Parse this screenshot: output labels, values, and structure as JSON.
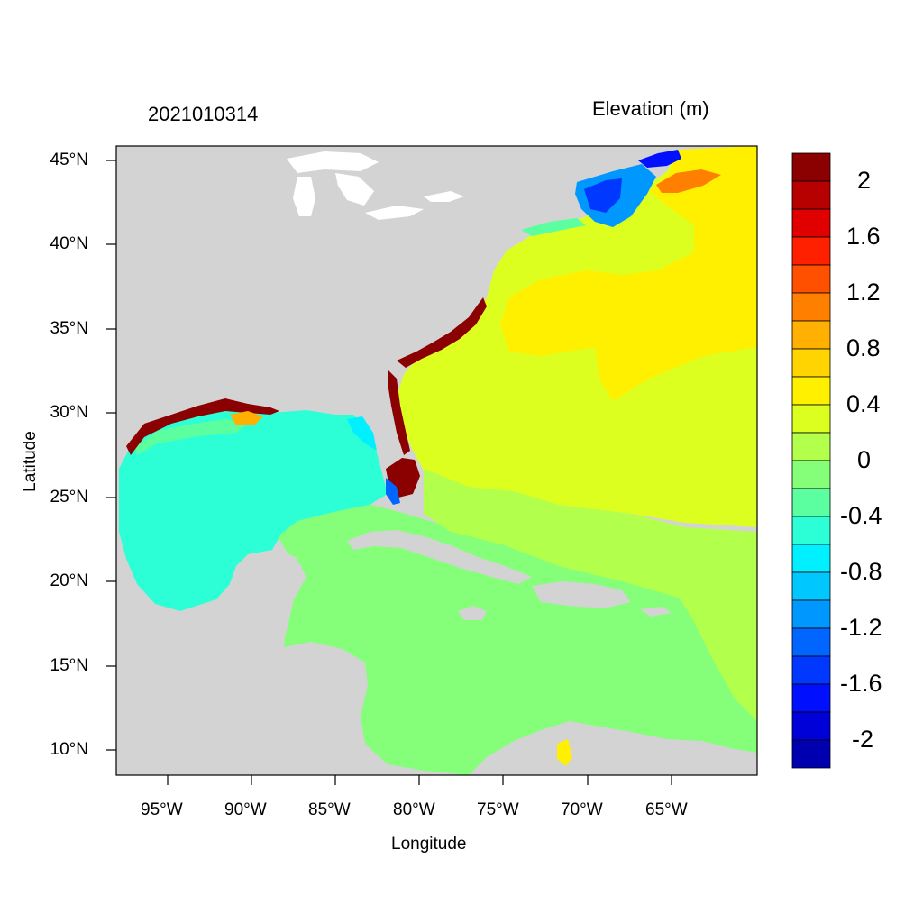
{
  "header": {
    "timestamp": "2021010314",
    "variable": "Elevation (m)"
  },
  "axes": {
    "xlabel": "Longitude",
    "ylabel": "Latitude",
    "lat_ticks": [
      "45°N",
      "40°N",
      "35°N",
      "30°N",
      "25°N",
      "20°N",
      "15°N",
      "10°N"
    ],
    "lon_ticks": [
      "95°W",
      "90°W",
      "85°W",
      "80°W",
      "75°W",
      "70°W",
      "65°W"
    ],
    "lat_range": [
      8.5,
      46.0
    ],
    "lon_range": [
      -98.0,
      -60.5
    ]
  },
  "colorbar": {
    "labels": [
      "2",
      "1.6",
      "1.2",
      "0.8",
      "0.4",
      "0",
      "-0.4",
      "-0.8",
      "-1.2",
      "-1.6",
      "-2"
    ],
    "colors": [
      "#8b0000",
      "#b70000",
      "#e00000",
      "#ff2000",
      "#ff5000",
      "#ff8000",
      "#ffb000",
      "#ffd400",
      "#fff000",
      "#ddff20",
      "#b2ff4c",
      "#85ff7a",
      "#5cffa0",
      "#2cffd6",
      "#00f0ff",
      "#00c8ff",
      "#0098ff",
      "#0066ff",
      "#0038ff",
      "#0010ff",
      "#0000d8",
      "#0000b0"
    ]
  },
  "map_colors": {
    "land": "#d3d3d3",
    "lakes": "#ffffff",
    "gulf_of_mexico": "#2cffd6",
    "caribbean": "#85ff7a",
    "atlantic": "#ddff20",
    "atlantic_high": "#fff000",
    "surge_high": "#8b0000",
    "surge_low": "#0038ff"
  }
}
